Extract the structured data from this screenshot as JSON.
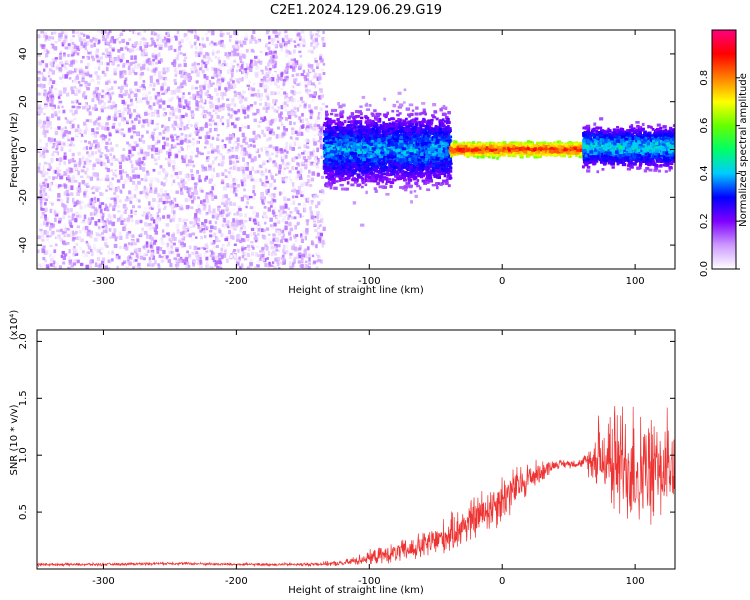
{
  "title": "C2E1.2024.129.06.29.G19",
  "chart_data": [
    {
      "type": "heatmap",
      "xlabel": "Height of straight line (km)",
      "ylabel": "Frequency (Hz)",
      "xlim": [
        -350,
        130
      ],
      "ylim": [
        -50,
        50
      ],
      "x_ticks": [
        -300,
        -200,
        -100,
        0,
        100
      ],
      "y_ticks": [
        -40,
        -20,
        0,
        20,
        40
      ],
      "colorbar": {
        "label": "Normalized spectral amplitude",
        "range": [
          0,
          1
        ],
        "ticks": [
          "0.0",
          "0.2",
          "0.4",
          "0.6",
          "0.8"
        ],
        "colormap": [
          "#ffffff",
          "#cc99ff",
          "#7f00ff",
          "#0000ff",
          "#00ccff",
          "#00ff66",
          "#66ff00",
          "#ffff00",
          "#ff7f00",
          "#ff0000",
          "#ff007f"
        ]
      },
      "regions": [
        {
          "x_range": [
            -350,
            -135
          ],
          "freq_range": [
            -50,
            50
          ],
          "amplitude_range": [
            0.0,
            0.15
          ]
        },
        {
          "x_range": [
            -135,
            -40
          ],
          "freq_center": 0,
          "freq_halfwidth": 12,
          "amplitude_range": [
            0.1,
            0.45
          ]
        },
        {
          "x_range": [
            -40,
            60
          ],
          "freq_center": 0,
          "freq_halfwidth": 2,
          "amplitude_range": [
            0.6,
            0.95
          ]
        },
        {
          "x_range": [
            60,
            130
          ],
          "freq_center": 1,
          "freq_halfwidth": 6,
          "amplitude_range": [
            0.15,
            0.5
          ]
        }
      ]
    },
    {
      "type": "line",
      "xlabel": "Height of straight line (km)",
      "ylabel": "SNR (10 * v/v)",
      "y_scale_label": "(x10⁴)",
      "xlim": [
        -350,
        130
      ],
      "ylim": [
        0,
        2.1
      ],
      "x_ticks": [
        -300,
        -200,
        -100,
        0,
        100
      ],
      "y_ticks": [
        "0.5",
        "1.0",
        "1.5",
        "2.0"
      ],
      "color": "#ee3333",
      "series": [
        {
          "x": [
            -350,
            -300,
            -250,
            -200,
            -150,
            -120,
            -100,
            -80,
            -60,
            -40,
            -20,
            0,
            20,
            40,
            60,
            75,
            85,
            95,
            105,
            115,
            130
          ],
          "y": [
            0.04,
            0.04,
            0.05,
            0.04,
            0.04,
            0.05,
            0.1,
            0.14,
            0.2,
            0.3,
            0.45,
            0.62,
            0.8,
            0.92,
            0.93,
            0.98,
            0.95,
            0.9,
            0.85,
            0.85,
            0.88
          ],
          "noise": [
            0.01,
            0.01,
            0.01,
            0.01,
            0.01,
            0.02,
            0.05,
            0.07,
            0.1,
            0.13,
            0.16,
            0.18,
            0.12,
            0.03,
            0.03,
            0.25,
            0.4,
            0.45,
            0.4,
            0.35,
            0.35
          ]
        }
      ]
    }
  ]
}
